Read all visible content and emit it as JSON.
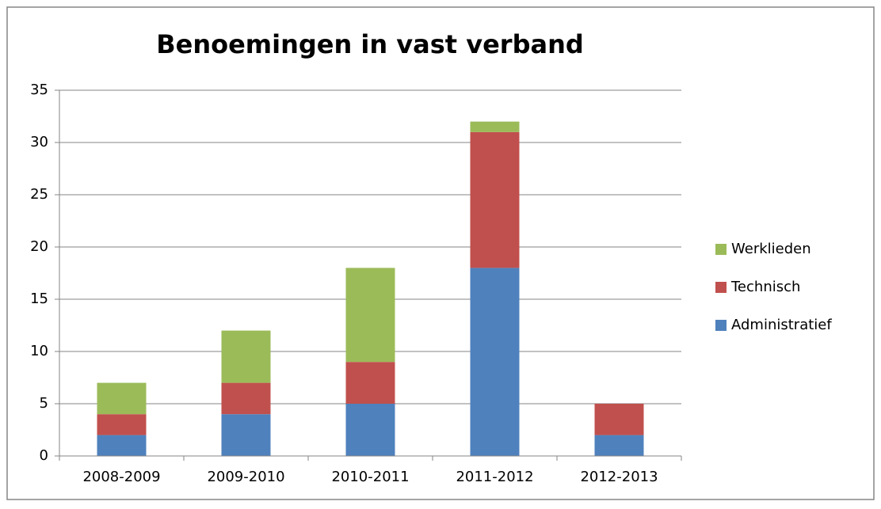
{
  "chart_data": {
    "type": "stacked_bar",
    "title": "Benoemingen in vast verband",
    "categories": [
      "2008-2009",
      "2009-2010",
      "2010-2011",
      "2011-2012",
      "2012-2013"
    ],
    "series": [
      {
        "name": "Administratief",
        "color": "#4f81bd",
        "values": [
          2,
          4,
          5,
          18,
          2
        ]
      },
      {
        "name": "Technisch",
        "color": "#c0504d",
        "values": [
          2,
          3,
          4,
          13,
          3
        ]
      },
      {
        "name": "Werklieden",
        "color": "#9bbb59",
        "values": [
          3,
          5,
          9,
          1,
          0
        ]
      }
    ],
    "ylim": [
      0,
      35
    ],
    "yticks": [
      0,
      5,
      10,
      15,
      20,
      25,
      30,
      35
    ],
    "grid": true,
    "legend": "right"
  }
}
